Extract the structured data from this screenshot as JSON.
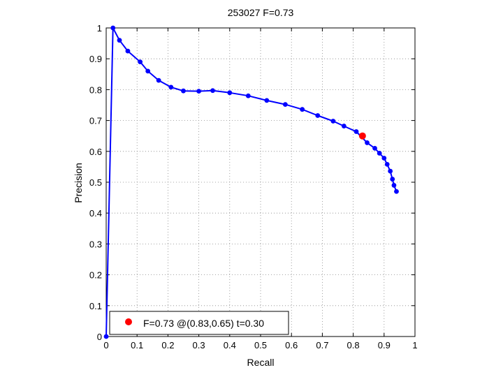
{
  "chart_data": {
    "type": "line",
    "title": "253027 F=0.73",
    "xlabel": "Recall",
    "ylabel": "Precision",
    "xlim": [
      0,
      1
    ],
    "ylim": [
      0,
      1
    ],
    "xticks": [
      "0",
      "0.1",
      "0.2",
      "0.3",
      "0.4",
      "0.5",
      "0.6",
      "0.7",
      "0.8",
      "0.9",
      "1"
    ],
    "yticks": [
      "0",
      "0.1",
      "0.2",
      "0.3",
      "0.4",
      "0.5",
      "0.6",
      "0.7",
      "0.8",
      "0.9",
      "1"
    ],
    "grid": true,
    "legend_position": "bottom-left",
    "series": [
      {
        "color": "#0000ff",
        "x": [
          0.0,
          0.022,
          0.043,
          0.07,
          0.11,
          0.135,
          0.17,
          0.21,
          0.25,
          0.3,
          0.345,
          0.4,
          0.46,
          0.52,
          0.58,
          0.635,
          0.685,
          0.735,
          0.77,
          0.81,
          0.845,
          0.87,
          0.885,
          0.9,
          0.91,
          0.92,
          0.927,
          0.932,
          0.94
        ],
        "y": [
          0.0,
          1.0,
          0.96,
          0.925,
          0.89,
          0.86,
          0.83,
          0.808,
          0.796,
          0.795,
          0.797,
          0.79,
          0.78,
          0.765,
          0.752,
          0.736,
          0.716,
          0.698,
          0.682,
          0.664,
          0.628,
          0.61,
          0.594,
          0.578,
          0.558,
          0.536,
          0.51,
          0.49,
          0.47
        ]
      }
    ],
    "best_point": {
      "label": "F=0.73 @(0.83,0.65) t=0.30",
      "x": 0.83,
      "y": 0.65,
      "color": "#ff0000"
    }
  }
}
